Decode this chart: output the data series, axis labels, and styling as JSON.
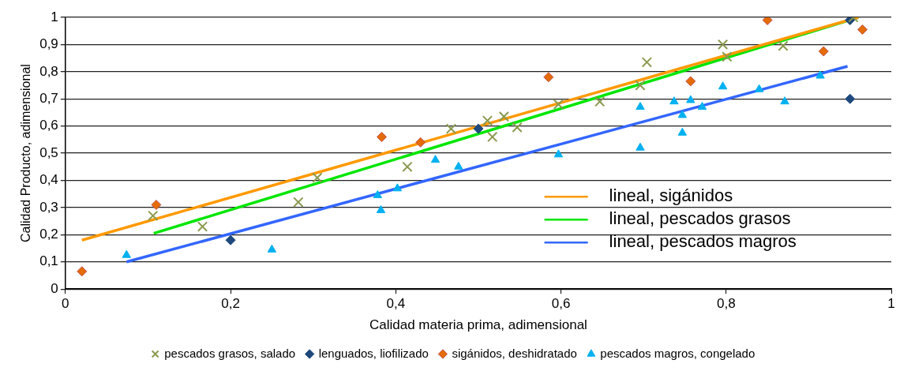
{
  "chart_data": {
    "type": "scatter",
    "xlabel": "Calidad materia prima, adimensional",
    "ylabel": "Calidad Producto, adimensional",
    "xlim": [
      0,
      1
    ],
    "ylim": [
      0,
      1
    ],
    "xticks": [
      0,
      {
        "value": 0.2,
        "label": "0,2"
      },
      {
        "value": 0.4,
        "label": "0,4"
      },
      {
        "value": 0.6,
        "label": "0,6"
      },
      {
        "value": 0.8,
        "label": "0,8"
      },
      1
    ],
    "yticks": [
      0,
      {
        "value": 0.1,
        "label": "0,1"
      },
      {
        "value": 0.2,
        "label": "0,2"
      },
      {
        "value": 0.3,
        "label": "0,3"
      },
      {
        "value": 0.4,
        "label": "0,4"
      },
      {
        "value": 0.5,
        "label": "0,5"
      },
      {
        "value": 0.6,
        "label": "0,6"
      },
      {
        "value": 0.7,
        "label": "0,7"
      },
      {
        "value": 0.8,
        "label": "0,8"
      },
      {
        "value": 0.9,
        "label": "0,9"
      },
      1
    ],
    "grid": "y",
    "legend": "bottom",
    "series": [
      {
        "name": "lenguados, liofilizado",
        "marker": "diamond",
        "color": "#1f497d",
        "x": [
          0.2,
          0.5,
          0.95,
          0.95
        ],
        "values": [
          0.18,
          0.59,
          0.99,
          0.7
        ]
      },
      {
        "name": "sigánidos, deshidratado",
        "marker": "diamond",
        "color": "#e46c0a",
        "x": [
          0.02,
          0.11,
          0.383,
          0.43,
          0.585,
          0.757,
          0.85,
          0.918,
          0.965
        ],
        "values": [
          0.065,
          0.31,
          0.56,
          0.54,
          0.78,
          0.765,
          0.99,
          0.875,
          0.955
        ]
      },
      {
        "name": "pescados grasos, salado",
        "marker": "cross",
        "color": "#8a9a4f",
        "x": [
          0.106,
          0.166,
          0.282,
          0.305,
          0.414,
          0.467,
          0.511,
          0.517,
          0.531,
          0.547,
          0.597,
          0.647,
          0.696,
          0.704,
          0.796,
          0.801,
          0.869,
          0.954
        ],
        "values": [
          0.27,
          0.23,
          0.32,
          0.41,
          0.45,
          0.59,
          0.62,
          0.56,
          0.635,
          0.595,
          0.68,
          0.69,
          0.75,
          0.835,
          0.9,
          0.855,
          0.895,
          1.0
        ]
      },
      {
        "name": "pescados magros, congelado",
        "marker": "triangle",
        "color": "#00b0f0",
        "x": [
          0.074,
          0.25,
          0.378,
          0.382,
          0.402,
          0.448,
          0.476,
          0.597,
          0.696,
          0.696,
          0.737,
          0.747,
          0.747,
          0.757,
          0.771,
          0.796,
          0.84,
          0.871,
          0.914
        ],
        "values": [
          0.125,
          0.145,
          0.345,
          0.29,
          0.37,
          0.475,
          0.45,
          0.495,
          0.67,
          0.52,
          0.69,
          0.64,
          0.575,
          0.695,
          0.67,
          0.745,
          0.735,
          0.69,
          0.785
        ]
      },
      {
        "name": "lineal, sigánidos",
        "type": "line",
        "marker": "none",
        "color": "#ff9900",
        "x": [
          0.02,
          0.96
        ],
        "values": [
          0.18,
          1.0
        ]
      },
      {
        "name": "lineal, pescados grasos",
        "type": "line",
        "marker": "none",
        "color": "#00e600",
        "x": [
          0.107,
          0.96
        ],
        "values": [
          0.205,
          1.0
        ]
      },
      {
        "name": "lineal, pescados magros",
        "type": "line",
        "marker": "none",
        "color": "#3366ff",
        "x": [
          0.074,
          0.947
        ],
        "values": [
          0.1,
          0.82
        ]
      }
    ]
  }
}
